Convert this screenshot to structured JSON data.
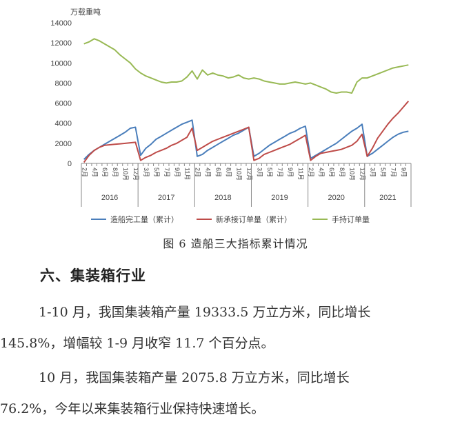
{
  "chart_data": {
    "type": "line",
    "unit_label": "万载重吨",
    "ylim": [
      0,
      14000
    ],
    "yticks": [
      "0",
      "2000",
      "4000",
      "6000",
      "8000",
      "10000",
      "12000",
      "14000"
    ],
    "month_labels": [
      "2月",
      "3月",
      "4月",
      "5月",
      "6月",
      "7月",
      "8月",
      "9月",
      "10月",
      "11月",
      "12月",
      "2月",
      "3月",
      "4月",
      "5月",
      "6月",
      "7月",
      "8月",
      "9月",
      "10月",
      "11月",
      "12月",
      "2月",
      "3月",
      "4月",
      "5月",
      "6月",
      "7月",
      "8月",
      "9月",
      "10月",
      "11月",
      "12月",
      "2月",
      "3月",
      "4月",
      "5月",
      "6月",
      "7月",
      "8月",
      "9月",
      "10月",
      "11月",
      "12月",
      "2月",
      "3月",
      "4月",
      "5月",
      "6月",
      "7月",
      "8月",
      "9月",
      "10月",
      "11月",
      "12月",
      "2月",
      "3月",
      "4月",
      "5月",
      "6月",
      "7月",
      "8月",
      "9月",
      "10月"
    ],
    "years": [
      {
        "label": "2016",
        "count": 11
      },
      {
        "label": "2017",
        "count": 11
      },
      {
        "label": "2018",
        "count": 11
      },
      {
        "label": "2019",
        "count": 11
      },
      {
        "label": "2020",
        "count": 11
      },
      {
        "label": "2021",
        "count": 9
      }
    ],
    "grid": false,
    "legend_position": "bottom",
    "series": [
      {
        "name": "造船完工量（累计）",
        "color": "#4a7ebb",
        "values": [
          400,
          900,
          1300,
          1600,
          1900,
          2200,
          2500,
          2800,
          3100,
          3500,
          3600,
          800,
          1500,
          1900,
          2400,
          2700,
          3000,
          3300,
          3600,
          3900,
          4100,
          4300,
          700,
          900,
          1300,
          1600,
          1900,
          2200,
          2500,
          2800,
          3000,
          3300,
          3600,
          700,
          1000,
          1400,
          1800,
          2100,
          2400,
          2700,
          3000,
          3200,
          3500,
          3700,
          500,
          800,
          1100,
          1400,
          1700,
          2000,
          2400,
          2800,
          3200,
          3500,
          3900,
          700,
          1000,
          1400,
          1800,
          2200,
          2600,
          2900,
          3100,
          3200
        ]
      },
      {
        "name": "新承接订单量（累计）",
        "color": "#be4b48",
        "values": [
          100,
          800,
          1300,
          1600,
          1800,
          1850,
          1900,
          1950,
          2000,
          2050,
          2100,
          300,
          600,
          800,
          1100,
          1300,
          1500,
          1800,
          2000,
          2300,
          2600,
          3500,
          1300,
          1600,
          1900,
          2200,
          2400,
          2600,
          2800,
          3000,
          3200,
          3400,
          3600,
          300,
          500,
          900,
          1100,
          1300,
          1500,
          1700,
          1900,
          2200,
          2500,
          2800,
          300,
          700,
          1000,
          1100,
          1200,
          1300,
          1400,
          1600,
          1800,
          2200,
          2900,
          700,
          1500,
          2500,
          3200,
          3900,
          4500,
          5000,
          5600,
          6200
        ]
      },
      {
        "name": "手持订单量",
        "color": "#98b954",
        "values": [
          11900,
          12100,
          12400,
          12200,
          11900,
          11600,
          11300,
          10800,
          10400,
          10000,
          9400,
          9000,
          8700,
          8500,
          8300,
          8100,
          8000,
          8100,
          8100,
          8200,
          8600,
          9200,
          8400,
          9300,
          8800,
          9000,
          8800,
          8700,
          8500,
          8600,
          8800,
          8500,
          8400,
          8500,
          8400,
          8200,
          8100,
          8000,
          7900,
          7900,
          8000,
          8100,
          8000,
          7900,
          8000,
          7800,
          7600,
          7400,
          7100,
          7000,
          7100,
          7100,
          7000,
          8100,
          8500,
          8500,
          8700,
          8900,
          9100,
          9300,
          9500,
          9600,
          9700,
          9800
        ]
      }
    ]
  },
  "caption": "图 6  造船三大指标累计情况",
  "section": {
    "heading": "六、集装箱行业",
    "paragraphs": [
      [
        "1-10 月，我国集装箱产量 19333.5 万立方米，同比增长",
        "145.8%，增幅较 1-9 月收窄 11.7 个百分点。"
      ],
      [
        "10 月，我国集装箱产量 2075.8 万立方米，同比增长",
        "76.2%，今年以来集装箱行业保持快速增长。"
      ]
    ]
  }
}
